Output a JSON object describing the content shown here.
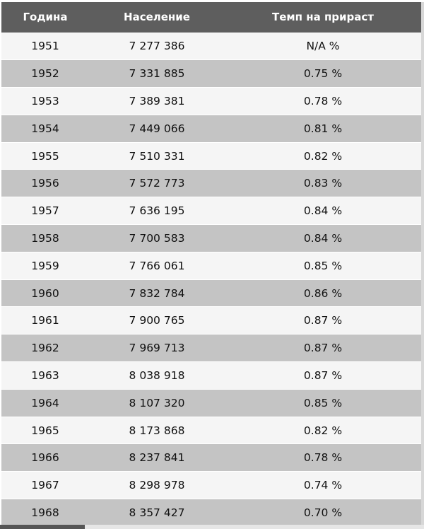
{
  "table": {
    "headers": [
      "Година",
      "Население",
      "Темп на прираст"
    ],
    "rows": [
      [
        "1951",
        "7 277 386",
        "N/A %"
      ],
      [
        "1952",
        "7 331 885",
        "0.75 %"
      ],
      [
        "1953",
        "7 389 381",
        "0.78 %"
      ],
      [
        "1954",
        "7 449 066",
        "0.81 %"
      ],
      [
        "1955",
        "7 510 331",
        "0.82 %"
      ],
      [
        "1956",
        "7 572 773",
        "0.83 %"
      ],
      [
        "1957",
        "7 636 195",
        "0.84 %"
      ],
      [
        "1958",
        "7 700 583",
        "0.84 %"
      ],
      [
        "1959",
        "7 766 061",
        "0.85 %"
      ],
      [
        "1960",
        "7 832 784",
        "0.86 %"
      ],
      [
        "1961",
        "7 900 765",
        "0.87 %"
      ],
      [
        "1962",
        "7 969 713",
        "0.87 %"
      ],
      [
        "1963",
        "8 038 918",
        "0.87 %"
      ],
      [
        "1964",
        "8 107 320",
        "0.85 %"
      ],
      [
        "1965",
        "8 173 868",
        "0.82 %"
      ],
      [
        "1966",
        "8 237 841",
        "0.78 %"
      ],
      [
        "1967",
        "8 298 978",
        "0.74 %"
      ],
      [
        "1968",
        "8 357 427",
        "0.70 %"
      ]
    ]
  },
  "colors": {
    "header_bg": "#5e5e5e",
    "row_light": "#f5f5f5",
    "row_dark": "#c4c4c4"
  }
}
